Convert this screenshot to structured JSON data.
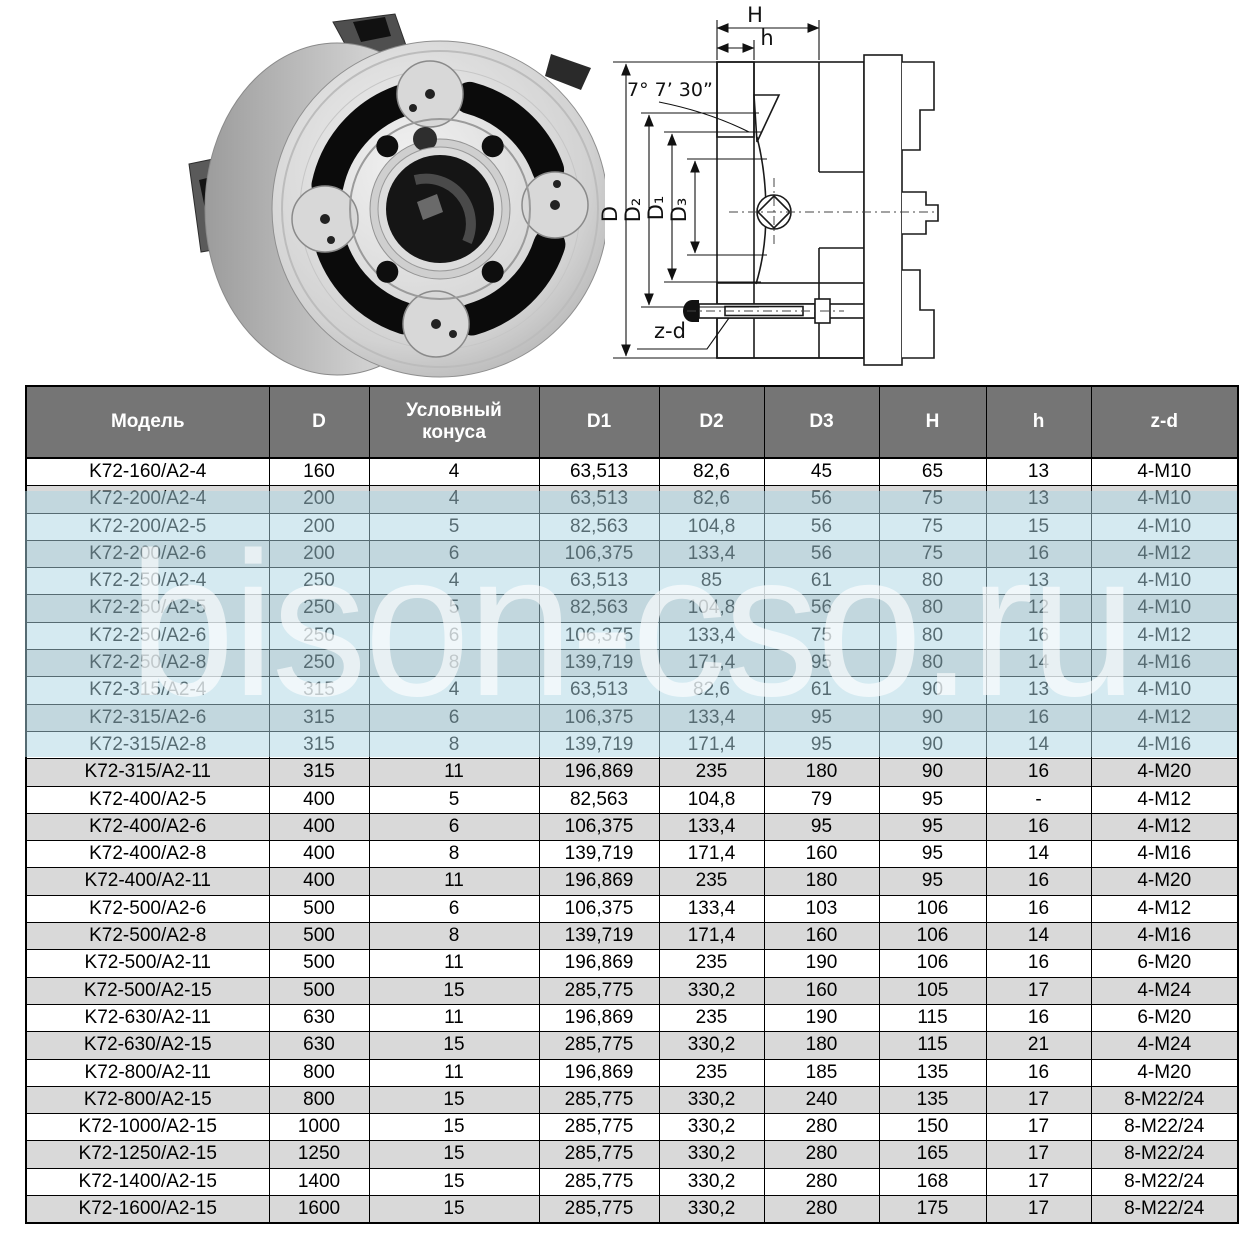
{
  "watermark": {
    "text": "bison-cso.ru"
  },
  "drawing": {
    "labels": {
      "H": "H",
      "h": "h",
      "angle": "7° 7’ 30”",
      "D": "D",
      "D2": "D₂",
      "D1": "D₁",
      "D3": "D₃",
      "zd": "z-d"
    }
  },
  "table": {
    "headers": [
      "Модель",
      "D",
      "Условный конуса",
      "D1",
      "D2",
      "D3",
      "H",
      "h",
      "z-d"
    ],
    "header_keys": [
      "model",
      "d",
      "cone",
      "d1",
      "d2",
      "d3",
      "h-cap",
      "h-small",
      "zd"
    ],
    "rows": [
      [
        "K72-160/A2-4",
        "160",
        "4",
        "63,513",
        "82,6",
        "45",
        "65",
        "13",
        "4-M10"
      ],
      [
        "K72-200/A2-4",
        "200",
        "4",
        "63,513",
        "82,6",
        "56",
        "75",
        "13",
        "4-M10"
      ],
      [
        "K72-200/A2-5",
        "200",
        "5",
        "82,563",
        "104,8",
        "56",
        "75",
        "15",
        "4-M10"
      ],
      [
        "K72-200/A2-6",
        "200",
        "6",
        "106,375",
        "133,4",
        "56",
        "75",
        "16",
        "4-M12"
      ],
      [
        "K72-250/A2-4",
        "250",
        "4",
        "63,513",
        "85",
        "61",
        "80",
        "13",
        "4-M10"
      ],
      [
        "K72-250/A2-5",
        "250",
        "5",
        "82,563",
        "104,8",
        "56",
        "80",
        "12",
        "4-M10"
      ],
      [
        "K72-250/A2-6",
        "250",
        "6",
        "106,375",
        "133,4",
        "75",
        "80",
        "16",
        "4-M12"
      ],
      [
        "K72-250/A2-8",
        "250",
        "8",
        "139,719",
        "171,4",
        "95",
        "80",
        "14",
        "4-M16"
      ],
      [
        "K72-315/A2-4",
        "315",
        "4",
        "63,513",
        "82,6",
        "61",
        "90",
        "13",
        "4-M10"
      ],
      [
        "K72-315/A2-6",
        "315",
        "6",
        "106,375",
        "133,4",
        "95",
        "90",
        "16",
        "4-M12"
      ],
      [
        "K72-315/A2-8",
        "315",
        "8",
        "139,719",
        "171,4",
        "95",
        "90",
        "14",
        "4-M16"
      ],
      [
        "K72-315/A2-11",
        "315",
        "11",
        "196,869",
        "235",
        "180",
        "90",
        "16",
        "4-M20"
      ],
      [
        "K72-400/A2-5",
        "400",
        "5",
        "82,563",
        "104,8",
        "79",
        "95",
        "-",
        "4-M12"
      ],
      [
        "K72-400/A2-6",
        "400",
        "6",
        "106,375",
        "133,4",
        "95",
        "95",
        "16",
        "4-M12"
      ],
      [
        "K72-400/A2-8",
        "400",
        "8",
        "139,719",
        "171,4",
        "160",
        "95",
        "14",
        "4-M16"
      ],
      [
        "K72-400/A2-11",
        "400",
        "11",
        "196,869",
        "235",
        "180",
        "95",
        "16",
        "4-M20"
      ],
      [
        "K72-500/A2-6",
        "500",
        "6",
        "106,375",
        "133,4",
        "103",
        "106",
        "16",
        "4-M12"
      ],
      [
        "K72-500/A2-8",
        "500",
        "8",
        "139,719",
        "171,4",
        "160",
        "106",
        "14",
        "4-M16"
      ],
      [
        "K72-500/A2-11",
        "500",
        "11",
        "196,869",
        "235",
        "190",
        "106",
        "16",
        "6-M20"
      ],
      [
        "K72-500/A2-15",
        "500",
        "15",
        "285,775",
        "330,2",
        "160",
        "105",
        "17",
        "4-M24"
      ],
      [
        "K72-630/A2-11",
        "630",
        "11",
        "196,869",
        "235",
        "190",
        "115",
        "16",
        "6-M20"
      ],
      [
        "K72-630/A2-15",
        "630",
        "15",
        "285,775",
        "330,2",
        "180",
        "115",
        "21",
        "4-M24"
      ],
      [
        "K72-800/A2-11",
        "800",
        "11",
        "196,869",
        "235",
        "185",
        "135",
        "16",
        "4-M20"
      ],
      [
        "K72-800/A2-15",
        "800",
        "15",
        "285,775",
        "330,2",
        "240",
        "135",
        "17",
        "8-M22/24"
      ],
      [
        "K72-1000/A2-15",
        "1000",
        "15",
        "285,775",
        "330,2",
        "280",
        "150",
        "17",
        "8-M22/24"
      ],
      [
        "K72-1250/A2-15",
        "1250",
        "15",
        "285,775",
        "330,2",
        "280",
        "165",
        "17",
        "8-M22/24"
      ],
      [
        "K72-1400/A2-15",
        "1400",
        "15",
        "285,775",
        "330,2",
        "280",
        "168",
        "17",
        "8-M22/24"
      ],
      [
        "K72-1600/A2-15",
        "1600",
        "15",
        "285,775",
        "330,2",
        "280",
        "175",
        "17",
        "8-M22/24"
      ]
    ]
  },
  "colors": {
    "header_bg": "#757575",
    "row_alt": "#d9d9d9",
    "watermark_band": "#acd6e3",
    "border": "#000000"
  }
}
